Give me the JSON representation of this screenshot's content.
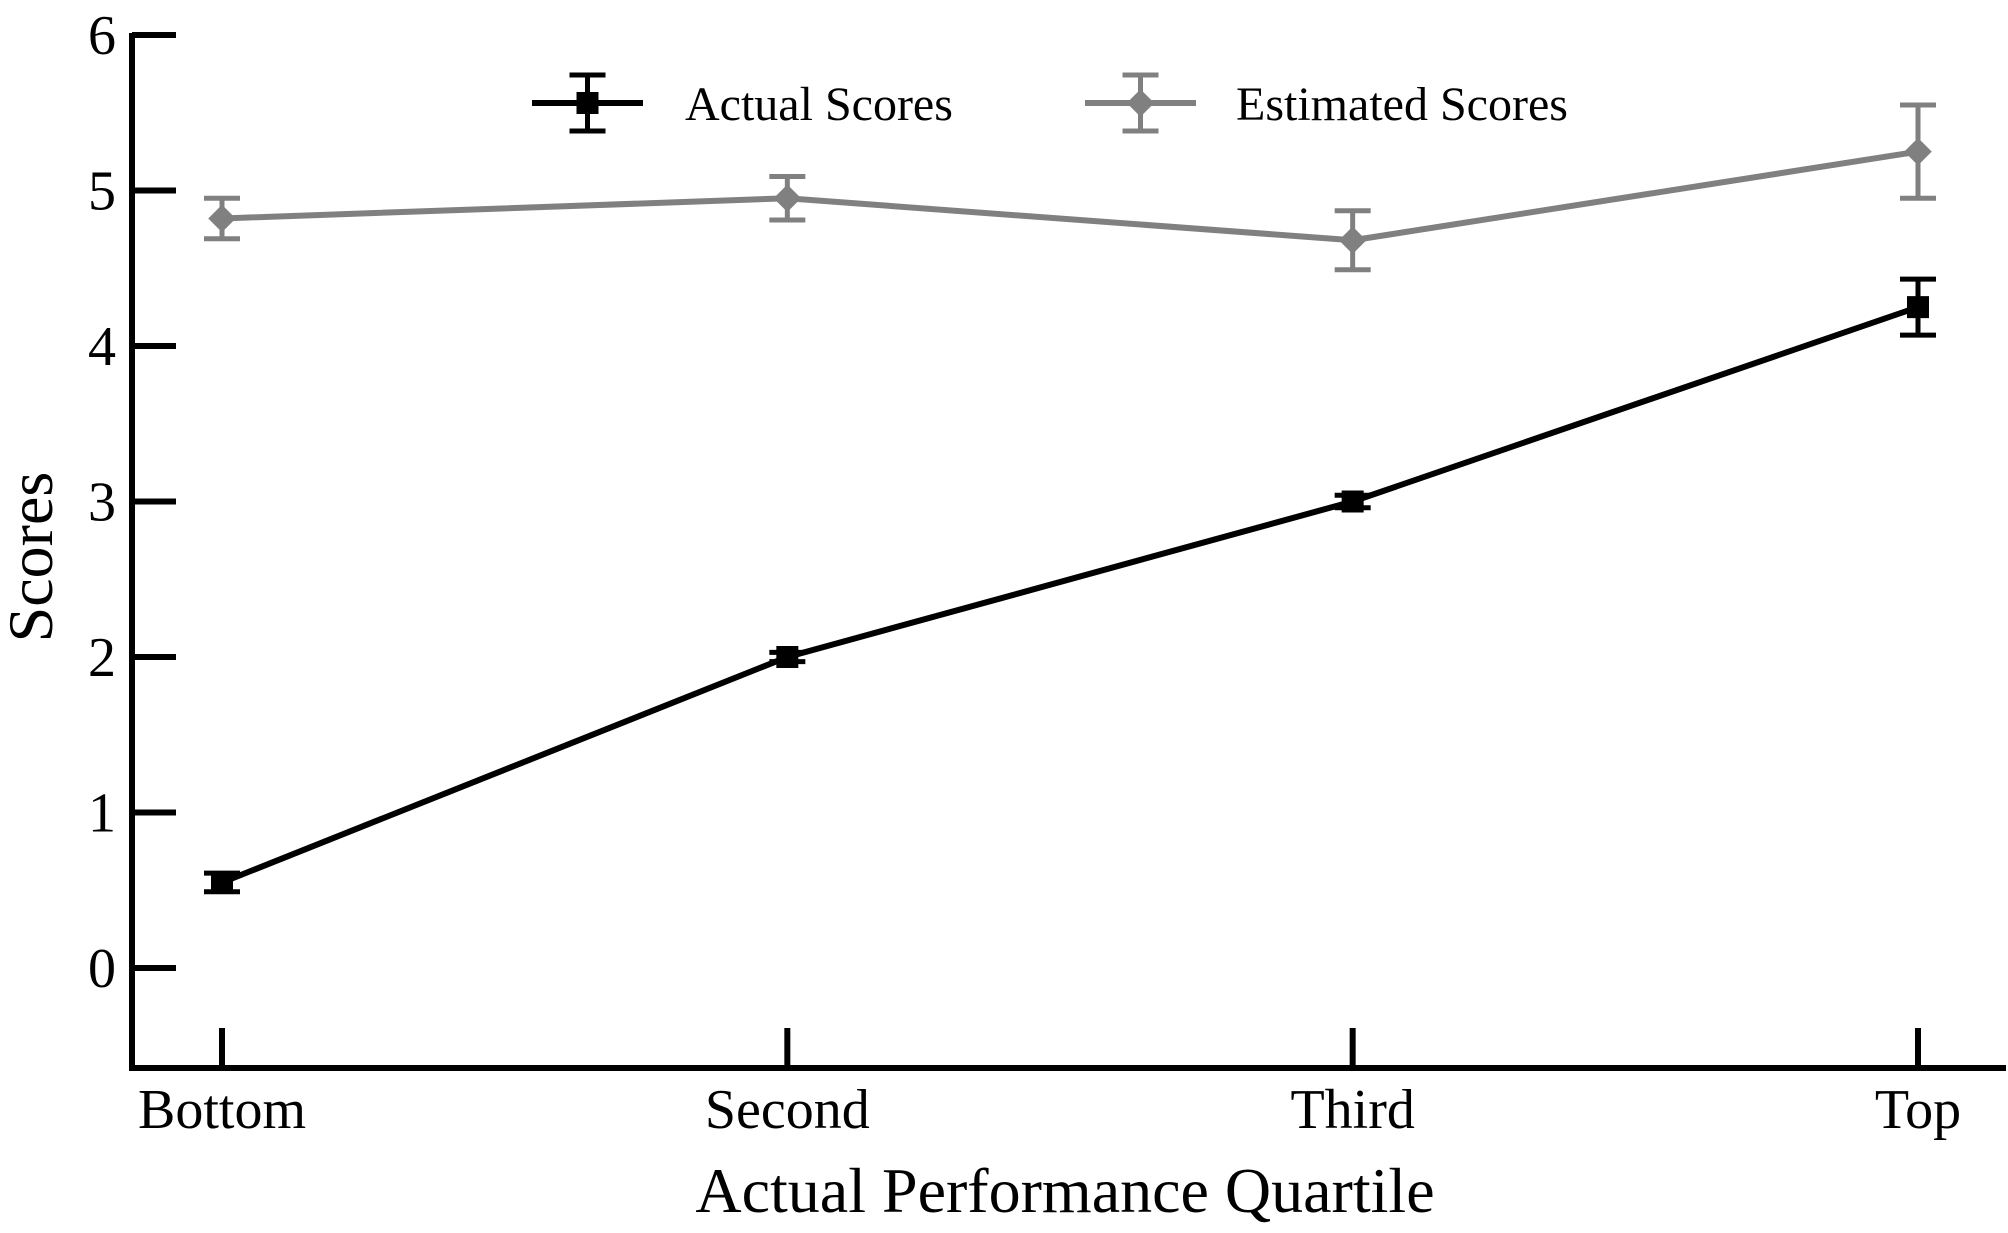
{
  "chart_data": {
    "type": "line",
    "title": "",
    "xlabel": "Actual Performance Quartile",
    "ylabel": "Scores",
    "categories": [
      "Bottom",
      "Second",
      "Third",
      "Top"
    ],
    "ylim": [
      -0.65,
      6
    ],
    "yticks": [
      0,
      1,
      2,
      3,
      4,
      5,
      6
    ],
    "grid": false,
    "legend_position": "top-center",
    "error_bars": true,
    "series": [
      {
        "name": "Actual Scores",
        "color": "#000000",
        "marker": "square",
        "values": [
          0.55,
          2.0,
          3.0,
          4.25
        ],
        "error": [
          0.06,
          0.03,
          0.04,
          0.18
        ]
      },
      {
        "name": "Estimated Scores",
        "color": "#808080",
        "marker": "diamond",
        "values": [
          4.82,
          4.95,
          4.68,
          5.25
        ],
        "error": [
          0.13,
          0.14,
          0.19,
          0.3
        ]
      }
    ]
  }
}
